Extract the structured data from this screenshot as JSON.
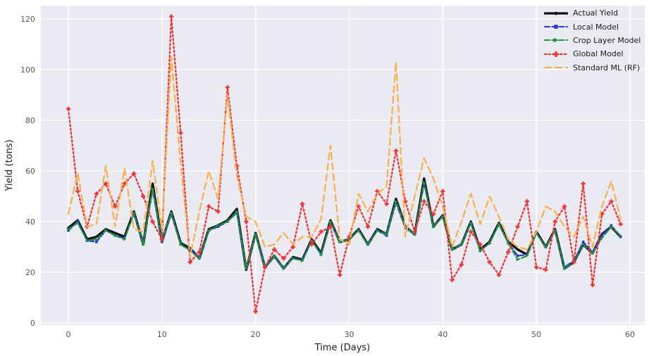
{
  "figure": {
    "background": "#ffffff",
    "plot_background": "#eaeaf2",
    "grid_color": "#ffffff",
    "tick_color": "#555558",
    "label_color": "#1c1c1c"
  },
  "chart_data": {
    "type": "line",
    "title": "",
    "xlabel": "Time (Days)",
    "ylabel": "Yield (tons)",
    "xlim": [
      -2.936,
      61.58
    ],
    "ylim": [
      -0.83,
      125.28
    ],
    "xticks": [
      0,
      10,
      20,
      30,
      40,
      50,
      60
    ],
    "yticks": [
      0,
      20,
      40,
      60,
      80,
      100,
      120
    ],
    "grid": true,
    "legend_position": "upper right",
    "x": [
      0,
      1,
      2,
      3,
      4,
      5,
      6,
      7,
      8,
      9,
      10,
      11,
      12,
      13,
      14,
      15,
      16,
      17,
      18,
      19,
      20,
      21,
      22,
      23,
      24,
      25,
      26,
      27,
      28,
      29,
      30,
      31,
      32,
      33,
      34,
      35,
      36,
      37,
      38,
      39,
      40,
      41,
      42,
      43,
      44,
      45,
      46,
      47,
      48,
      49,
      50,
      51,
      52,
      53,
      54,
      55,
      56,
      57,
      58,
      59
    ],
    "series": [
      {
        "name": "Actual Yield",
        "color": "#111111",
        "style": "solid",
        "marker": "circle",
        "width": 3.4,
        "values": [
          37.5,
          40.5,
          33,
          34,
          37,
          35.5,
          34,
          44,
          31,
          55,
          32,
          44,
          31.5,
          29.5,
          25.5,
          37,
          38.5,
          40.5,
          45,
          21,
          35.5,
          22,
          26.5,
          21.5,
          26,
          25,
          33,
          27.5,
          40.5,
          32,
          33,
          37,
          31,
          37,
          35,
          49,
          38,
          35,
          57,
          38,
          42.5,
          29,
          31,
          40,
          29,
          32,
          39.5,
          32,
          29,
          27,
          36,
          30,
          37,
          21.5,
          24,
          31,
          27.5,
          35,
          38,
          34
        ]
      },
      {
        "name": "Local Model",
        "color": "#2433d6",
        "style": "dashed",
        "marker": "square",
        "width": 2.1,
        "values": [
          36.5,
          40,
          32.5,
          32,
          36.5,
          34.5,
          33.5,
          43,
          31.5,
          52.5,
          32,
          43,
          31,
          29,
          26,
          36.5,
          38,
          40,
          43.5,
          21.5,
          35,
          22.5,
          26,
          22,
          25.5,
          25,
          32.5,
          27,
          39.5,
          32,
          33,
          36.5,
          31,
          36.5,
          34.5,
          47.5,
          37.5,
          35,
          55,
          38,
          42,
          29.5,
          31,
          39.5,
          28.5,
          31.5,
          39,
          31.5,
          26.5,
          27,
          35.5,
          30,
          36.5,
          22,
          24.5,
          32,
          28,
          34.5,
          38.5,
          34
        ]
      },
      {
        "name": "Crop Layer Model",
        "color": "#1e9440",
        "style": "dashed",
        "marker": "triangle-right",
        "width": 2.1,
        "values": [
          37,
          39.5,
          32.5,
          33,
          36.5,
          34.5,
          33,
          43.5,
          31,
          53,
          32.5,
          43.5,
          31,
          28.5,
          25.5,
          36.5,
          38.5,
          40,
          44,
          21.5,
          35,
          22,
          26.5,
          21.5,
          25.5,
          24.5,
          32.5,
          27,
          40,
          32,
          33,
          36.5,
          31,
          36.5,
          35,
          48,
          38,
          35,
          55.5,
          38,
          42,
          29,
          31,
          39.5,
          28.5,
          31.5,
          39,
          31.5,
          25,
          26.5,
          35.5,
          30,
          36.5,
          21.5,
          24,
          31,
          27.5,
          33.5,
          38,
          34.5
        ]
      },
      {
        "name": "Global Model",
        "color": "#ef3333",
        "style": "dotted",
        "marker": "plus",
        "width": 2.3,
        "values": [
          84.5,
          52,
          38,
          51,
          55,
          46,
          55,
          59,
          50,
          40,
          33,
          121,
          75,
          24,
          28,
          46,
          44,
          93,
          62,
          40,
          4.5,
          22,
          29,
          25.5,
          30,
          47,
          31,
          36,
          38,
          19,
          34,
          46,
          38,
          52,
          47,
          68,
          48,
          36,
          48,
          43,
          52,
          17,
          23,
          36,
          31,
          24,
          19,
          28,
          38,
          48,
          22,
          21,
          40,
          46,
          24,
          55,
          15,
          43,
          48,
          39
        ]
      },
      {
        "name": "Standard ML (RF)",
        "color": "#fbb04e",
        "style": "longdash",
        "marker": "none",
        "width": 2.3,
        "values": [
          43,
          59,
          38,
          39,
          62,
          38,
          61,
          37,
          36,
          64,
          37,
          105,
          63,
          26,
          44,
          60,
          49,
          90,
          58,
          42,
          40,
          30,
          31,
          35.5,
          31,
          34,
          34,
          41,
          70,
          33,
          31,
          51,
          44,
          51,
          54,
          103,
          34,
          50,
          65,
          57,
          46,
          30,
          40,
          51,
          39,
          50,
          42,
          33,
          30,
          29,
          36,
          46,
          44,
          38,
          34,
          42,
          30,
          46,
          56,
          41
        ]
      }
    ]
  }
}
